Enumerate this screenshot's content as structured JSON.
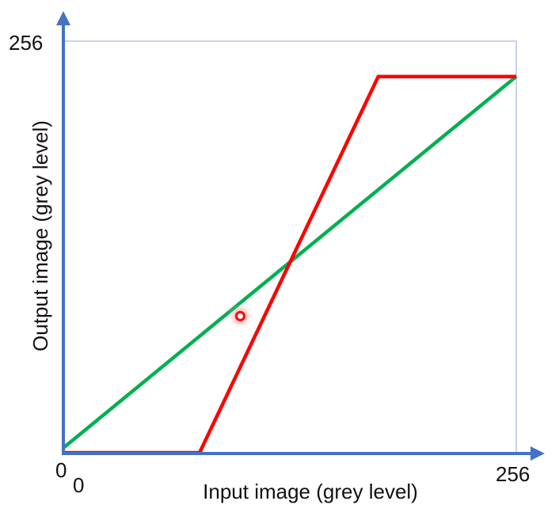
{
  "chart_data": {
    "type": "line",
    "xlabel": "Input image (grey level)",
    "ylabel": "Output image (grey level)",
    "xlim": [
      0,
      256
    ],
    "ylim": [
      0,
      256
    ],
    "x_ticks": [
      "0",
      "256"
    ],
    "y_ticks": [
      "0",
      "256"
    ],
    "origin_label": "0",
    "grid": false,
    "series": [
      {
        "color": "#00b050",
        "points": [
          [
            0,
            3
          ],
          [
            256,
            234
          ]
        ]
      },
      {
        "color": "#ff0000",
        "points": [
          [
            0,
            0
          ],
          [
            77,
            0
          ],
          [
            178,
            234
          ],
          [
            256,
            234
          ]
        ]
      }
    ],
    "annotations": [
      {
        "type": "cursor-marker",
        "x": 100,
        "y": 85,
        "color": "#ff0000"
      }
    ],
    "axis_color": "#4472c4",
    "frame_color": "#8fa8cf"
  }
}
